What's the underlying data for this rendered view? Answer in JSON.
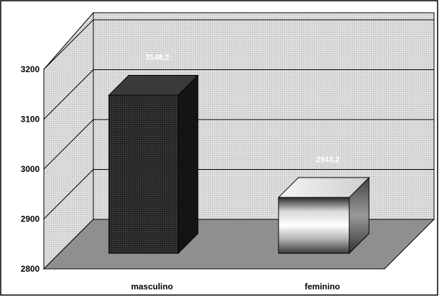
{
  "chart_data": {
    "type": "bar",
    "categories": [
      "masculino",
      "feminino"
    ],
    "values": [
      3148.2,
      2943.2
    ],
    "data_labels": [
      "3148,2",
      "2943,2"
    ],
    "ylim": [
      2800,
      3200
    ],
    "yticks": [
      2800,
      2900,
      3000,
      3100,
      3200
    ],
    "ytick_labels": [
      "2800",
      "2900",
      "3000",
      "3100",
      "3200"
    ],
    "title": "",
    "xlabel": "",
    "ylabel": "",
    "grid": true,
    "legend": "none",
    "style": "3d",
    "colors": {
      "masculino": "#1e1e1e",
      "feminino": "#e8e8e8",
      "wall": "#d4d4d4",
      "floor": "#909090"
    }
  }
}
